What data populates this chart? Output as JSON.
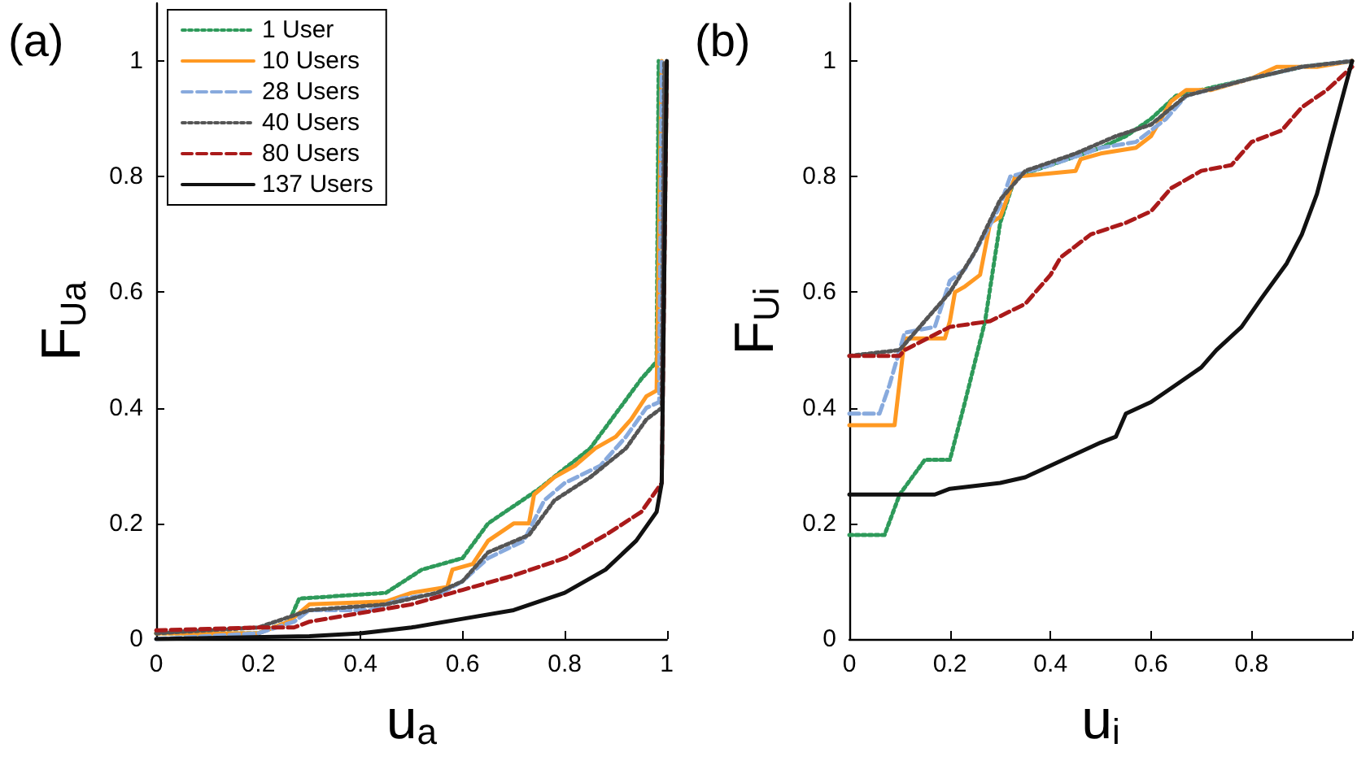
{
  "chart_data": [
    {
      "type": "line",
      "title": "(a)",
      "xlabel": "u$_{a}$",
      "ylabel": "F$_{Ua}$",
      "xlim": [
        0,
        1
      ],
      "ylim": [
        0,
        1.1
      ],
      "xticks": [
        0,
        0.2,
        0.4,
        0.6,
        0.8,
        1
      ],
      "yticks": [
        0,
        0.2,
        0.4,
        0.6,
        0.8,
        1
      ],
      "grid": false,
      "legend": "top left",
      "marker": "none",
      "series": [
        {
          "name": "1 User",
          "color": "#2e9a5a",
          "line_style": "dotted",
          "x": [
            0,
            0.2,
            0.26,
            0.28,
            0.45,
            0.52,
            0.6,
            0.65,
            0.75,
            0.85,
            0.95,
            0.98,
            0.984
          ],
          "values": [
            0.01,
            0.01,
            0.03,
            0.07,
            0.08,
            0.12,
            0.14,
            0.2,
            0.26,
            0.33,
            0.45,
            0.48,
            1
          ]
        },
        {
          "name": "10 Users",
          "color": "#ff9922",
          "line_style": "solid",
          "x": [
            0,
            0.2,
            0.26,
            0.3,
            0.45,
            0.5,
            0.57,
            0.58,
            0.62,
            0.65,
            0.7,
            0.73,
            0.74,
            0.78,
            0.82,
            0.86,
            0.9,
            0.93,
            0.96,
            0.98,
            0.99
          ],
          "values": [
            0.01,
            0.01,
            0.03,
            0.06,
            0.065,
            0.08,
            0.09,
            0.12,
            0.13,
            0.17,
            0.2,
            0.2,
            0.25,
            0.28,
            0.3,
            0.33,
            0.35,
            0.38,
            0.42,
            0.43,
            1
          ]
        },
        {
          "name": "28 Users",
          "color": "#88aadd",
          "line_style": "dashed",
          "x": [
            0,
            0.2,
            0.27,
            0.3,
            0.42,
            0.48,
            0.56,
            0.6,
            0.65,
            0.72,
            0.76,
            0.8,
            0.87,
            0.92,
            0.96,
            0.985,
            0.99
          ],
          "values": [
            0,
            0.01,
            0.03,
            0.05,
            0.05,
            0.07,
            0.08,
            0.1,
            0.14,
            0.17,
            0.24,
            0.27,
            0.3,
            0.35,
            0.4,
            0.41,
            1
          ]
        },
        {
          "name": "40 Users",
          "color": "#555555",
          "line_style": "dotted",
          "x": [
            0,
            0.2,
            0.3,
            0.45,
            0.55,
            0.6,
            0.65,
            0.73,
            0.78,
            0.85,
            0.92,
            0.96,
            0.99,
            0.995
          ],
          "values": [
            0.01,
            0.02,
            0.05,
            0.06,
            0.08,
            0.1,
            0.15,
            0.18,
            0.24,
            0.28,
            0.33,
            0.38,
            0.4,
            1
          ]
        },
        {
          "name": "80 Users",
          "color": "#aa1a1a",
          "line_style": "dashed",
          "x": [
            0,
            0.2,
            0.27,
            0.3,
            0.4,
            0.5,
            0.6,
            0.7,
            0.8,
            0.88,
            0.95,
            0.99,
            1
          ],
          "values": [
            0.015,
            0.02,
            0.02,
            0.03,
            0.045,
            0.06,
            0.085,
            0.11,
            0.14,
            0.18,
            0.22,
            0.27,
            1
          ]
        },
        {
          "name": "137 Users",
          "color": "#111111",
          "line_style": "solid",
          "x": [
            0,
            0.3,
            0.4,
            0.5,
            0.6,
            0.7,
            0.8,
            0.88,
            0.94,
            0.98,
            0.99,
            1
          ],
          "values": [
            0,
            0.005,
            0.01,
            0.02,
            0.035,
            0.05,
            0.08,
            0.12,
            0.17,
            0.22,
            0.27,
            1
          ]
        }
      ]
    },
    {
      "type": "line",
      "title": "(b)",
      "xlabel": "u$_{i}$",
      "ylabel": "F$_{Ui}$",
      "xlim": [
        0,
        1
      ],
      "ylim": [
        0,
        1.1
      ],
      "xticks": [
        0,
        0.2,
        0.4,
        0.6,
        0.8,
        {
          "value": 1,
          "label": null
        }
      ],
      "yticks": [
        0,
        0.2,
        0.4,
        0.6,
        0.8,
        1
      ],
      "grid": false,
      "legend": false,
      "marker": "none",
      "series": [
        {
          "color": "#2e9a5a",
          "line_style": "dotted",
          "x": [
            0,
            0.07,
            0.1,
            0.15,
            0.2,
            0.23,
            0.27,
            0.3,
            0.33,
            0.4,
            0.5,
            0.55,
            0.6,
            0.65,
            0.7,
            0.8,
            0.9,
            1
          ],
          "values": [
            0.18,
            0.18,
            0.25,
            0.31,
            0.31,
            0.41,
            0.55,
            0.72,
            0.8,
            0.82,
            0.85,
            0.87,
            0.9,
            0.94,
            0.95,
            0.97,
            0.99,
            1
          ]
        },
        {
          "color": "#ff9922",
          "line_style": "solid",
          "x": [
            0,
            0.09,
            0.11,
            0.19,
            0.2,
            0.21,
            0.23,
            0.26,
            0.28,
            0.3,
            0.33,
            0.45,
            0.46,
            0.5,
            0.57,
            0.6,
            0.64,
            0.67,
            0.72,
            0.8,
            0.85,
            0.93,
            1
          ],
          "values": [
            0.37,
            0.37,
            0.52,
            0.52,
            0.55,
            0.6,
            0.61,
            0.63,
            0.72,
            0.73,
            0.8,
            0.81,
            0.83,
            0.84,
            0.85,
            0.87,
            0.93,
            0.95,
            0.95,
            0.97,
            0.99,
            0.99,
            1
          ]
        },
        {
          "color": "#88aadd",
          "line_style": "dashed",
          "x": [
            0,
            0.06,
            0.08,
            0.11,
            0.17,
            0.2,
            0.23,
            0.27,
            0.3,
            0.32,
            0.4,
            0.5,
            0.57,
            0.63,
            0.67,
            0.8,
            0.9,
            1
          ],
          "values": [
            0.39,
            0.39,
            0.44,
            0.53,
            0.54,
            0.62,
            0.64,
            0.7,
            0.75,
            0.8,
            0.82,
            0.85,
            0.86,
            0.9,
            0.94,
            0.97,
            0.99,
            1
          ]
        },
        {
          "color": "#555555",
          "line_style": "dotted",
          "x": [
            0,
            0.1,
            0.13,
            0.2,
            0.25,
            0.3,
            0.35,
            0.45,
            0.53,
            0.6,
            0.67,
            0.8,
            0.9,
            1
          ],
          "values": [
            0.49,
            0.5,
            0.53,
            0.6,
            0.67,
            0.76,
            0.81,
            0.84,
            0.87,
            0.89,
            0.94,
            0.97,
            0.99,
            1
          ]
        },
        {
          "color": "#aa1a1a",
          "line_style": "dashed",
          "x": [
            0,
            0.1,
            0.11,
            0.2,
            0.28,
            0.35,
            0.4,
            0.42,
            0.48,
            0.55,
            0.6,
            0.64,
            0.7,
            0.76,
            0.8,
            0.86,
            0.9,
            0.95,
            1
          ],
          "values": [
            0.49,
            0.49,
            0.5,
            0.54,
            0.55,
            0.58,
            0.63,
            0.66,
            0.7,
            0.72,
            0.74,
            0.78,
            0.81,
            0.82,
            0.86,
            0.88,
            0.92,
            0.95,
            0.99
          ]
        },
        {
          "color": "#111111",
          "line_style": "solid",
          "x": [
            0,
            0.17,
            0.2,
            0.3,
            0.35,
            0.4,
            0.45,
            0.5,
            0.53,
            0.55,
            0.6,
            0.65,
            0.7,
            0.73,
            0.78,
            0.82,
            0.87,
            0.9,
            0.93,
            0.96,
            1
          ],
          "values": [
            0.25,
            0.25,
            0.26,
            0.27,
            0.28,
            0.3,
            0.32,
            0.34,
            0.35,
            0.39,
            0.41,
            0.44,
            0.47,
            0.5,
            0.54,
            0.59,
            0.65,
            0.7,
            0.77,
            0.87,
            1
          ]
        }
      ]
    }
  ]
}
